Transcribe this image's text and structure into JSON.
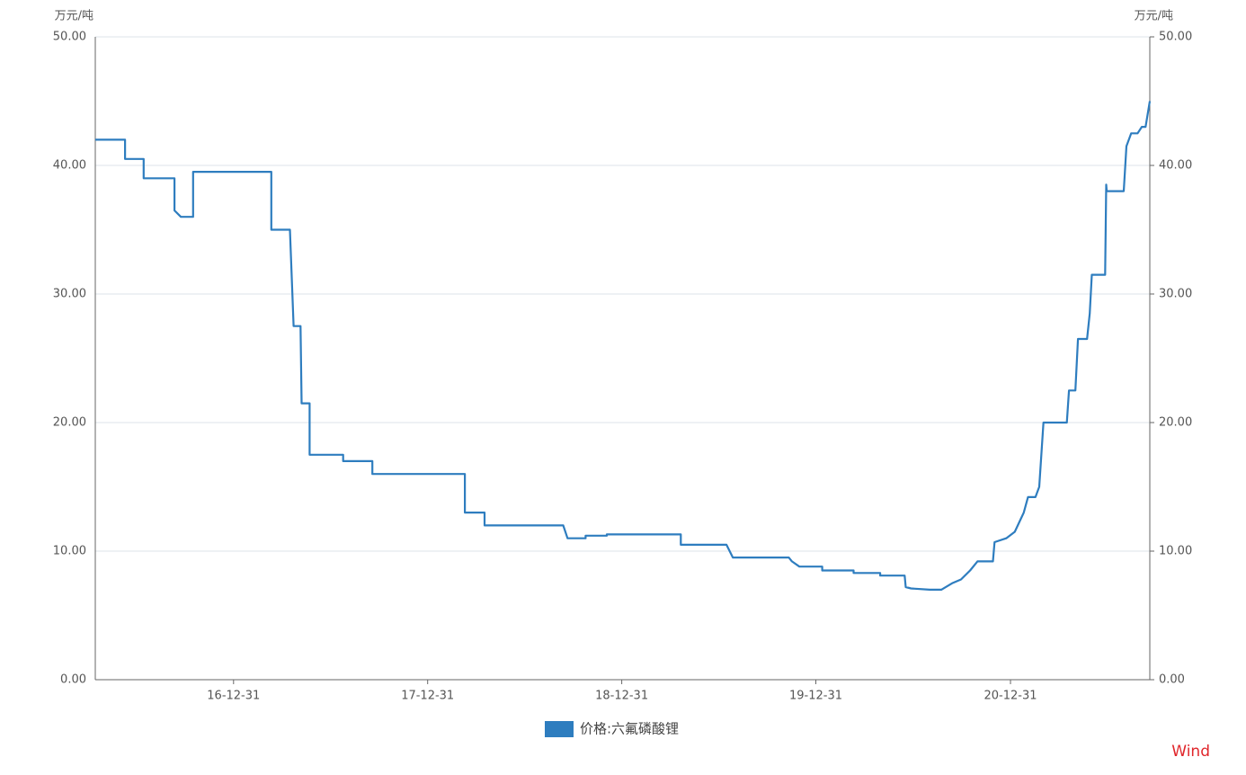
{
  "chart_data": {
    "type": "line",
    "y_label": "万元/吨",
    "y2_label": "万元/吨",
    "source": "Wind",
    "x": [
      "16-04-15",
      "16-06-10",
      "16-06-10",
      "16-07-15",
      "16-07-15",
      "16-09-11",
      "16-09-11",
      "16-09-23",
      "16-10-16",
      "16-10-16",
      "17-03-12",
      "17-03-12",
      "17-04-16",
      "17-04-23",
      "17-05-06",
      "17-05-08",
      "17-05-23",
      "17-05-23",
      "17-07-25",
      "17-07-25",
      "17-09-18",
      "17-09-18",
      "18-03-11",
      "18-03-11",
      "18-04-17",
      "18-04-17",
      "18-09-12",
      "18-09-16",
      "18-09-20",
      "18-10-24",
      "18-10-24",
      "18-12-03",
      "18-12-03",
      "19-04-21",
      "19-04-21",
      "19-07-16",
      "19-07-28",
      "19-11-10",
      "19-11-16",
      "19-11-30",
      "20-01-12",
      "20-01-12",
      "20-03-11",
      "20-03-11",
      "20-04-30",
      "20-04-30",
      "20-06-15",
      "20-06-17",
      "20-06-27",
      "20-08-01",
      "20-08-23",
      "20-09-12",
      "20-09-29",
      "20-10-16",
      "20-10-30",
      "20-11-28",
      "20-12-01",
      "20-12-23",
      "21-01-08",
      "21-01-25",
      "21-02-02",
      "21-02-16",
      "21-02-23",
      "21-03-03",
      "21-04-16",
      "21-04-20",
      "21-05-02",
      "21-05-07",
      "21-05-24",
      "21-05-29",
      "21-06-02",
      "21-06-27",
      "21-06-29",
      "21-06-30",
      "21-07-02",
      "21-08-01",
      "21-08-06",
      "21-08-15",
      "21-08-27",
      "21-09-04",
      "21-09-11",
      "21-09-19"
    ],
    "series": [
      {
        "name": "价格:六氟磷酸锂",
        "color": "#2e7dbf",
        "values": [
          42,
          42,
          40.5,
          40.5,
          39,
          39,
          36.5,
          36,
          36,
          39.5,
          39.5,
          35,
          35,
          27.5,
          27.5,
          21.5,
          21.5,
          17.5,
          17.5,
          17,
          17,
          16,
          16,
          13,
          13,
          12,
          12,
          11.5,
          11,
          11,
          11.2,
          11.2,
          11.3,
          11.3,
          10.5,
          10.5,
          9.5,
          9.5,
          9.2,
          8.8,
          8.8,
          8.5,
          8.5,
          8.3,
          8.3,
          8.1,
          8.1,
          7.2,
          7.1,
          7,
          7,
          7.5,
          7.8,
          8.5,
          9.2,
          9.2,
          10.7,
          11,
          11.5,
          13,
          14.2,
          14.2,
          15,
          20,
          20,
          22.5,
          22.5,
          26.5,
          26.5,
          28.5,
          31.5,
          31.5,
          38.5,
          38,
          38,
          38,
          41.5,
          42.5,
          42.5,
          43,
          43,
          45
        ]
      }
    ],
    "xlim": [
      "16-04-15",
      "21-09-19"
    ],
    "xticks": [
      "16-12-31",
      "17-12-31",
      "18-12-31",
      "19-12-31",
      "20-12-31"
    ],
    "ylim": [
      0,
      50
    ],
    "yticks": [
      {
        "value": 0,
        "label": "0.00"
      },
      {
        "value": 10,
        "label": "10.00"
      },
      {
        "value": 20,
        "label": "20.00"
      },
      {
        "value": 30,
        "label": "30.00"
      },
      {
        "value": 40,
        "label": "40.00"
      },
      {
        "value": 50,
        "label": "50.00"
      }
    ],
    "y2lim": [
      0,
      50
    ],
    "y2ticks": [
      {
        "value": 0,
        "label": "0.00"
      },
      {
        "value": 10,
        "label": "10.00"
      },
      {
        "value": 20,
        "label": "20.00"
      },
      {
        "value": 30,
        "label": "30.00"
      },
      {
        "value": 40,
        "label": "40.00"
      },
      {
        "value": 50,
        "label": "50.00"
      }
    ],
    "grid": true,
    "legend": "bottom"
  }
}
